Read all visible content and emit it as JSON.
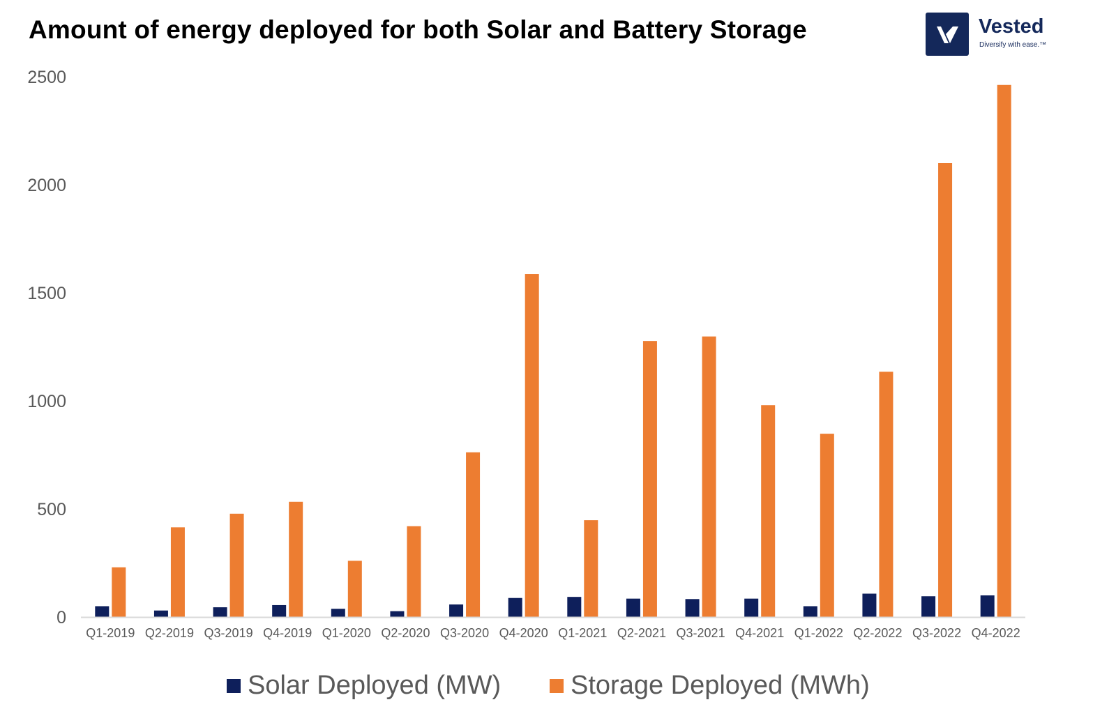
{
  "chart_data": {
    "type": "bar",
    "title": "Amount of energy deployed for both Solar and Battery Storage",
    "categories": [
      "Q1-2019",
      "Q2-2019",
      "Q3-2019",
      "Q4-2019",
      "Q1-2020",
      "Q2-2020",
      "Q3-2020",
      "Q4-2020",
      "Q1-2021",
      "Q2-2021",
      "Q3-2021",
      "Q4-2021",
      "Q1-2022",
      "Q2-2022",
      "Q3-2022",
      "Q4-2022"
    ],
    "series": [
      {
        "name": "Solar Deployed (MW)",
        "color": "#0e1f5b",
        "values": [
          50,
          30,
          45,
          55,
          38,
          27,
          58,
          88,
          93,
          85,
          83,
          85,
          50,
          108,
          96,
          100
        ]
      },
      {
        "name": "Storage Deployed (MWh)",
        "color": "#ed7d31",
        "values": [
          230,
          415,
          478,
          533,
          260,
          420,
          762,
          1587,
          448,
          1277,
          1298,
          980,
          848,
          1135,
          2100,
          2462
        ]
      }
    ],
    "ylim": [
      0,
      2500
    ],
    "yticks": [
      0,
      500,
      1000,
      1500,
      2000,
      2500
    ],
    "xlabel": "",
    "ylabel": "",
    "grid": false,
    "legend": "bottom"
  },
  "branding": {
    "name": "Vested",
    "tagline": "Diversify with ease.™",
    "color": "#14285a"
  }
}
